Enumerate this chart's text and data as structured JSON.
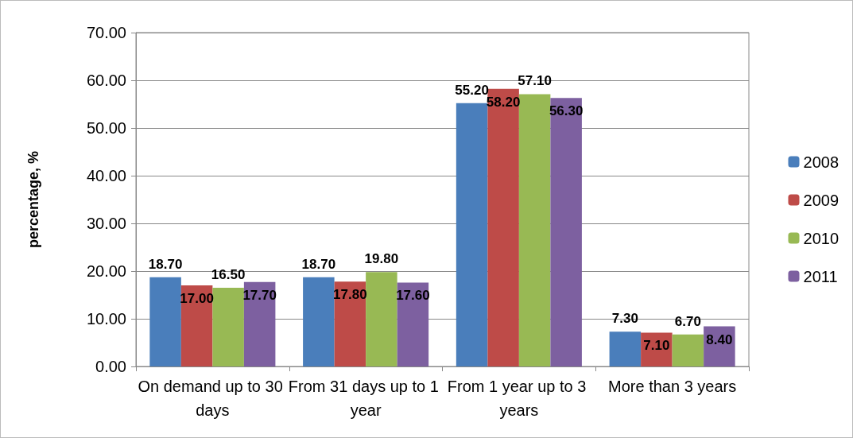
{
  "chart_data": {
    "type": "bar",
    "ylabel": "percentage, %",
    "categories": [
      "On demand up to 30 days",
      "From 31 days up to 1 year",
      "From 1 year up to 3 years",
      "More than 3 years"
    ],
    "series": [
      {
        "name": "2008",
        "color": "#4a7ebb",
        "values": [
          18.7,
          18.7,
          55.2,
          7.3
        ],
        "value_labels": [
          "18.70",
          "18.70",
          "55.20",
          "7.30"
        ]
      },
      {
        "name": "2009",
        "color": "#be4b48",
        "values": [
          17.0,
          17.8,
          58.2,
          7.1
        ],
        "value_labels": [
          "17.00",
          "17.80",
          "58.20",
          "7.10"
        ]
      },
      {
        "name": "2010",
        "color": "#98b954",
        "values": [
          16.5,
          19.8,
          57.1,
          6.7
        ],
        "value_labels": [
          "16.50",
          "19.80",
          "57.10",
          "6.70"
        ]
      },
      {
        "name": "2011",
        "color": "#7d60a0",
        "values": [
          17.7,
          17.6,
          56.3,
          8.4
        ],
        "value_labels": [
          "17.70",
          "17.60",
          "56.30",
          "8.40"
        ]
      }
    ],
    "ylim": [
      0,
      70
    ],
    "yticks": [
      {
        "value": 0,
        "label": "0.00"
      },
      {
        "value": 10,
        "label": "10.00"
      },
      {
        "value": 20,
        "label": "20.00"
      },
      {
        "value": 30,
        "label": "30.00"
      },
      {
        "value": 40,
        "label": "40.00"
      },
      {
        "value": 50,
        "label": "50.00"
      },
      {
        "value": 60,
        "label": "60.00"
      },
      {
        "value": 70,
        "label": "70.00"
      }
    ],
    "grid": "y",
    "legend": "right"
  }
}
